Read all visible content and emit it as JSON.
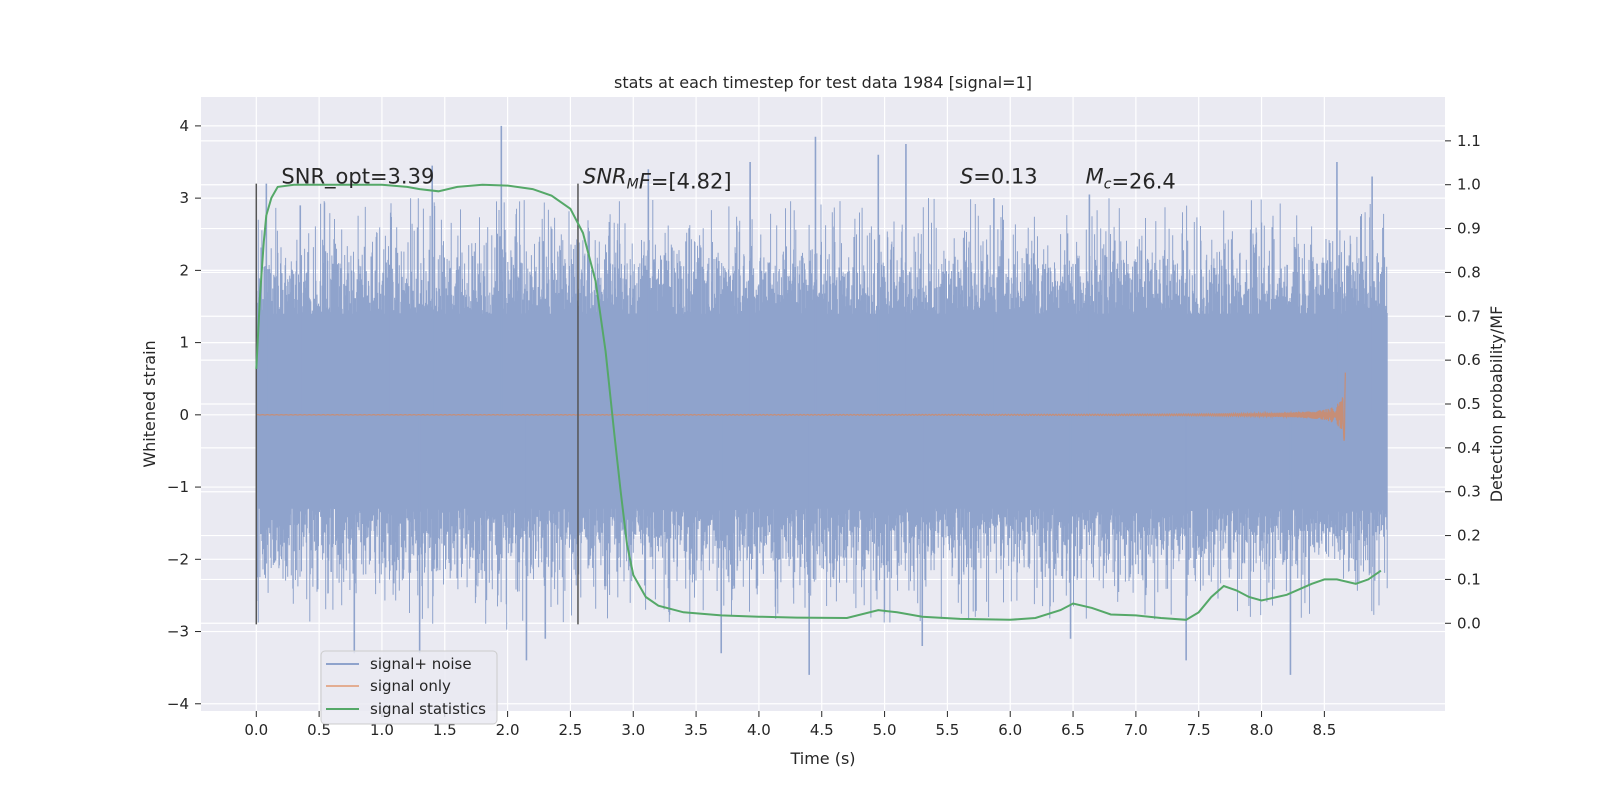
{
  "chart_data": {
    "type": "line",
    "title": "stats at each timestep for test data 1984 [signal=1]",
    "xlabel": "Time (s)",
    "ylabel_left": "Whitened strain",
    "ylabel_right": "Detection probability/MF",
    "xlim": [
      -0.44,
      9.46
    ],
    "ylim_left": [
      -4.1,
      4.4
    ],
    "ylim_right": [
      -0.2,
      1.2
    ],
    "x_ticks": [
      0.0,
      0.5,
      1.0,
      1.5,
      2.0,
      2.5,
      3.0,
      3.5,
      4.0,
      4.5,
      5.0,
      5.5,
      6.0,
      6.5,
      7.0,
      7.5,
      8.0,
      8.5
    ],
    "x_tick_labels": [
      "0.0",
      "0.5",
      "1.0",
      "1.5",
      "2.0",
      "2.5",
      "3.0",
      "3.5",
      "4.0",
      "4.5",
      "5.0",
      "5.5",
      "6.0",
      "6.5",
      "7.0",
      "7.5",
      "8.0",
      "8.5"
    ],
    "y_ticks_left": [
      4,
      3,
      2,
      1,
      0,
      -1,
      -2,
      -3,
      -4
    ],
    "y_tick_labels_left": [
      "4",
      "3",
      "2",
      "1",
      "0",
      "−1",
      "−2",
      "−3",
      "−4"
    ],
    "y_ticks_right": [
      1.1,
      1.0,
      0.9,
      0.8,
      0.7,
      0.6,
      0.5,
      0.4,
      0.3,
      0.2,
      0.1,
      0.0
    ],
    "y_tick_labels_right": [
      "1.1",
      "1.0",
      "0.9",
      "0.8",
      "0.7",
      "0.6",
      "0.5",
      "0.4",
      "0.3",
      "0.2",
      "0.1",
      "0.0"
    ],
    "grid": true,
    "legend_placement": "lower-left",
    "annotations": [
      {
        "x": 0.2,
        "y": 3.2,
        "text": "SNR_opt=3.39",
        "parts": [
          {
            "t": "SNR_opt=3.39"
          }
        ]
      },
      {
        "x": 2.6,
        "y": 3.2,
        "text": "SNR_MF=[4.82]",
        "parts": [
          {
            "t": "SNR",
            "i": true
          },
          {
            "t": "M",
            "i": true,
            "sub": true
          },
          {
            "t": "F",
            "i": true
          },
          {
            "t": "=[4.82]"
          }
        ]
      },
      {
        "x": 5.6,
        "y": 3.2,
        "text": "S=0.13",
        "parts": [
          {
            "t": "S",
            "i": true
          },
          {
            "t": "=0.13"
          }
        ]
      },
      {
        "x": 6.6,
        "y": 3.2,
        "text": "M_c=26.4",
        "parts": [
          {
            "t": "M",
            "i": true
          },
          {
            "t": "c",
            "i": true,
            "sub": true
          },
          {
            "t": "=26.4"
          }
        ]
      }
    ],
    "vertical_markers": [
      {
        "x": 0.0,
        "y_range": [
          -2.9,
          3.2
        ]
      },
      {
        "x": 2.56,
        "y_range": [
          -2.9,
          3.2
        ]
      }
    ],
    "series": [
      {
        "name": "signal+ noise",
        "axis": "left",
        "color": "#8fa3cc",
        "x_range": [
          0.0,
          9.0
        ],
        "envelope_lower": -1.3,
        "envelope_upper": 1.4,
        "spike_peaks": [
          {
            "x": 0.08,
            "y": 3.2
          },
          {
            "x": 0.35,
            "y": 2.9
          },
          {
            "x": 0.78,
            "y": -3.3
          },
          {
            "x": 1.07,
            "y": 2.8
          },
          {
            "x": 1.3,
            "y": -3.3
          },
          {
            "x": 1.4,
            "y": 3.45
          },
          {
            "x": 1.95,
            "y": 4.0
          },
          {
            "x": 2.15,
            "y": -3.4
          },
          {
            "x": 2.3,
            "y": -3.1
          },
          {
            "x": 3.12,
            "y": 3.4
          },
          {
            "x": 3.7,
            "y": -3.3
          },
          {
            "x": 3.93,
            "y": 3.5
          },
          {
            "x": 4.4,
            "y": -3.6
          },
          {
            "x": 4.45,
            "y": 3.85
          },
          {
            "x": 4.95,
            "y": 3.6
          },
          {
            "x": 5.17,
            "y": 3.75
          },
          {
            "x": 5.3,
            "y": -3.2
          },
          {
            "x": 5.87,
            "y": 3.0
          },
          {
            "x": 6.48,
            "y": -3.1
          },
          {
            "x": 6.63,
            "y": 3.05
          },
          {
            "x": 7.4,
            "y": -3.4
          },
          {
            "x": 8.23,
            "y": -3.6
          },
          {
            "x": 8.6,
            "y": 3.5
          },
          {
            "x": 8.88,
            "y": 3.3
          }
        ]
      },
      {
        "name": "signal only",
        "axis": "left",
        "color": "#dd8452",
        "x_range": [
          0.0,
          8.67
        ],
        "peak_amplitude": 0.75,
        "merger_time": 8.67
      },
      {
        "name": "signal statistics",
        "axis": "right",
        "color": "#55a868",
        "points": [
          [
            0.0,
            0.58
          ],
          [
            0.03,
            0.75
          ],
          [
            0.06,
            0.87
          ],
          [
            0.08,
            0.93
          ],
          [
            0.12,
            0.97
          ],
          [
            0.17,
            0.995
          ],
          [
            0.3,
            1.0
          ],
          [
            0.6,
            1.0
          ],
          [
            1.0,
            1.0
          ],
          [
            1.2,
            0.995
          ],
          [
            1.3,
            0.99
          ],
          [
            1.45,
            0.985
          ],
          [
            1.6,
            0.995
          ],
          [
            1.8,
            1.0
          ],
          [
            2.0,
            0.998
          ],
          [
            2.2,
            0.99
          ],
          [
            2.35,
            0.975
          ],
          [
            2.5,
            0.945
          ],
          [
            2.6,
            0.89
          ],
          [
            2.7,
            0.78
          ],
          [
            2.78,
            0.62
          ],
          [
            2.85,
            0.43
          ],
          [
            2.9,
            0.3
          ],
          [
            2.95,
            0.18
          ],
          [
            3.0,
            0.11
          ],
          [
            3.1,
            0.06
          ],
          [
            3.2,
            0.04
          ],
          [
            3.4,
            0.025
          ],
          [
            3.7,
            0.018
          ],
          [
            4.0,
            0.015
          ],
          [
            4.3,
            0.013
          ],
          [
            4.7,
            0.012
          ],
          [
            4.95,
            0.03
          ],
          [
            5.1,
            0.025
          ],
          [
            5.3,
            0.015
          ],
          [
            5.6,
            0.01
          ],
          [
            6.0,
            0.008
          ],
          [
            6.2,
            0.012
          ],
          [
            6.4,
            0.03
          ],
          [
            6.5,
            0.045
          ],
          [
            6.65,
            0.035
          ],
          [
            6.8,
            0.02
          ],
          [
            7.0,
            0.018
          ],
          [
            7.2,
            0.012
          ],
          [
            7.4,
            0.008
          ],
          [
            7.5,
            0.025
          ],
          [
            7.6,
            0.06
          ],
          [
            7.7,
            0.085
          ],
          [
            7.8,
            0.075
          ],
          [
            7.9,
            0.06
          ],
          [
            8.0,
            0.052
          ],
          [
            8.2,
            0.065
          ],
          [
            8.4,
            0.09
          ],
          [
            8.5,
            0.1
          ],
          [
            8.6,
            0.1
          ],
          [
            8.75,
            0.09
          ],
          [
            8.85,
            0.1
          ],
          [
            8.95,
            0.12
          ]
        ]
      }
    ]
  }
}
